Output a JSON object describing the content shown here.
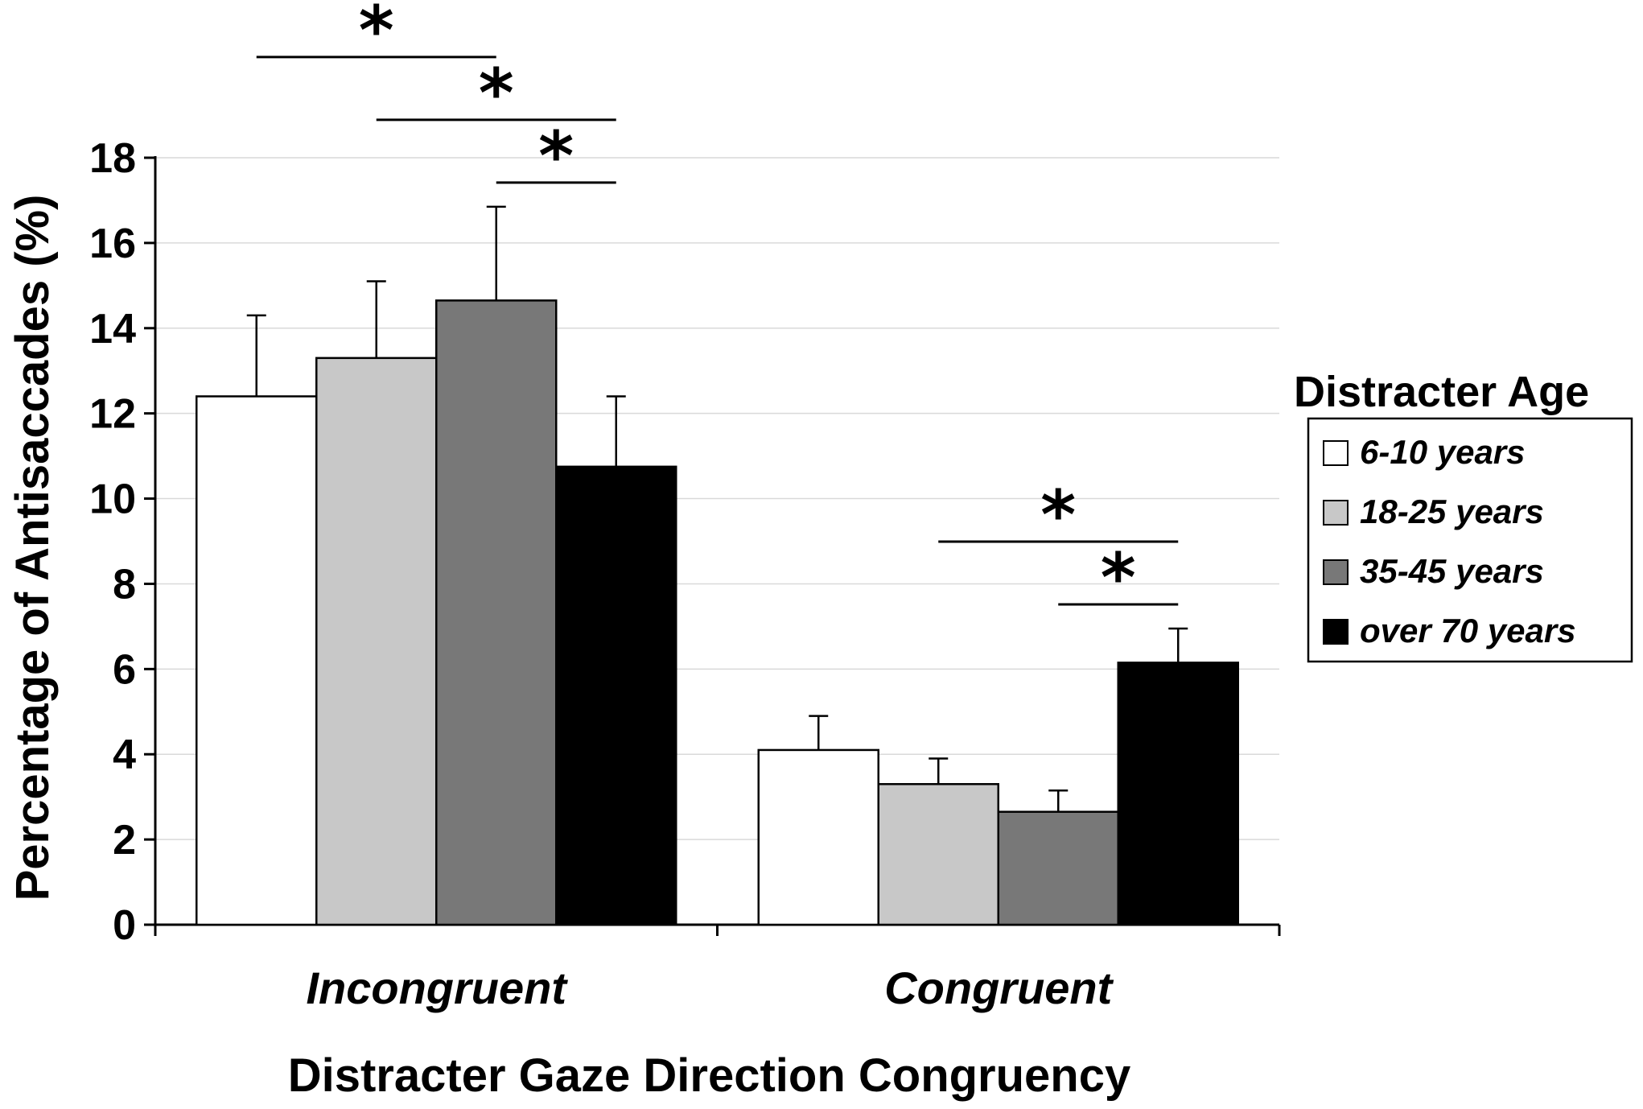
{
  "chart_data": {
    "type": "bar",
    "title": "",
    "xlabel": "Distracter Gaze Direction Congruency",
    "ylabel": "Percentage of Antisaccades (%)",
    "ylim": [
      0,
      18
    ],
    "yticks": [
      "0",
      "2",
      "4",
      "6",
      "8",
      "10",
      "12",
      "14",
      "16",
      "18"
    ],
    "grid": true,
    "categories": [
      "Incongruent",
      "Congruent"
    ],
    "legend": {
      "title": "Distracter Age",
      "position": "right"
    },
    "series": [
      {
        "name": "6-10 years",
        "color": "#ffffff",
        "values": [
          12.4,
          4.1
        ],
        "errors": [
          1.9,
          0.8
        ]
      },
      {
        "name": "18-25 years",
        "color": "#c8c8c8",
        "values": [
          13.3,
          3.3
        ],
        "errors": [
          1.8,
          0.6
        ]
      },
      {
        "name": "35-45 years",
        "color": "#787878",
        "values": [
          14.65,
          2.65
        ],
        "errors": [
          2.2,
          0.5
        ]
      },
      {
        "name": "over 70 years",
        "color": "#000000",
        "values": [
          10.75,
          6.15
        ],
        "errors": [
          1.65,
          0.8
        ]
      }
    ],
    "significance": [
      {
        "category": "Incongruent",
        "from_series": 0,
        "to_series": 2,
        "label": "*"
      },
      {
        "category": "Incongruent",
        "from_series": 1,
        "to_series": 3,
        "label": "*"
      },
      {
        "category": "Incongruent",
        "from_series": 2,
        "to_series": 3,
        "label": "*"
      },
      {
        "category": "Congruent",
        "from_series": 1,
        "to_series": 3,
        "label": "*"
      },
      {
        "category": "Congruent",
        "from_series": 2,
        "to_series": 3,
        "label": "*"
      }
    ]
  }
}
